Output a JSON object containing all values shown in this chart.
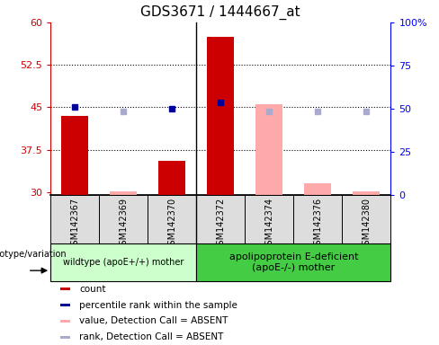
{
  "title": "GDS3671 / 1444667_at",
  "samples": [
    "GSM142367",
    "GSM142369",
    "GSM142370",
    "GSM142372",
    "GSM142374",
    "GSM142376",
    "GSM142380"
  ],
  "ylim": [
    29.5,
    60
  ],
  "ylim_right": [
    0,
    100
  ],
  "yticks_left": [
    30,
    37.5,
    45,
    52.5,
    60
  ],
  "yticks_right": [
    0,
    25,
    50,
    75,
    100
  ],
  "ytick_labels_left": [
    "30",
    "37.5",
    "45",
    "52.5",
    "60"
  ],
  "ytick_labels_right": [
    "0",
    "25",
    "50",
    "75",
    "100%"
  ],
  "count_values": [
    43.5,
    null,
    35.5,
    57.5,
    null,
    null,
    null
  ],
  "count_absent_values": [
    null,
    30.2,
    null,
    null,
    45.5,
    31.5,
    30.2
  ],
  "rank_values": [
    45.0,
    null,
    44.8,
    45.8,
    null,
    null,
    null
  ],
  "rank_absent_values": [
    null,
    44.2,
    null,
    null,
    44.2,
    44.2,
    44.2
  ],
  "group1_indices": [
    0,
    1,
    2
  ],
  "group2_indices": [
    3,
    4,
    5,
    6
  ],
  "group1_label": "wildtype (apoE+/+) mother",
  "group2_label": "apolipoprotein E-deficient\n(apoE-/-) mother",
  "color_count": "#cc0000",
  "color_count_absent": "#ffaaaa",
  "color_rank": "#000099",
  "color_rank_absent": "#aaaacc",
  "group1_color": "#ccffcc",
  "group2_color": "#44cc44",
  "header_bg": "#dddddd",
  "dotted_lines": [
    37.5,
    45.0,
    52.5
  ],
  "legend_items": [
    {
      "color": "#cc0000",
      "label": "count",
      "marker": "s"
    },
    {
      "color": "#000099",
      "label": "percentile rank within the sample",
      "marker": "s"
    },
    {
      "color": "#ffaaaa",
      "label": "value, Detection Call = ABSENT",
      "marker": "s"
    },
    {
      "color": "#aaaacc",
      "label": "rank, Detection Call = ABSENT",
      "marker": "s"
    }
  ]
}
